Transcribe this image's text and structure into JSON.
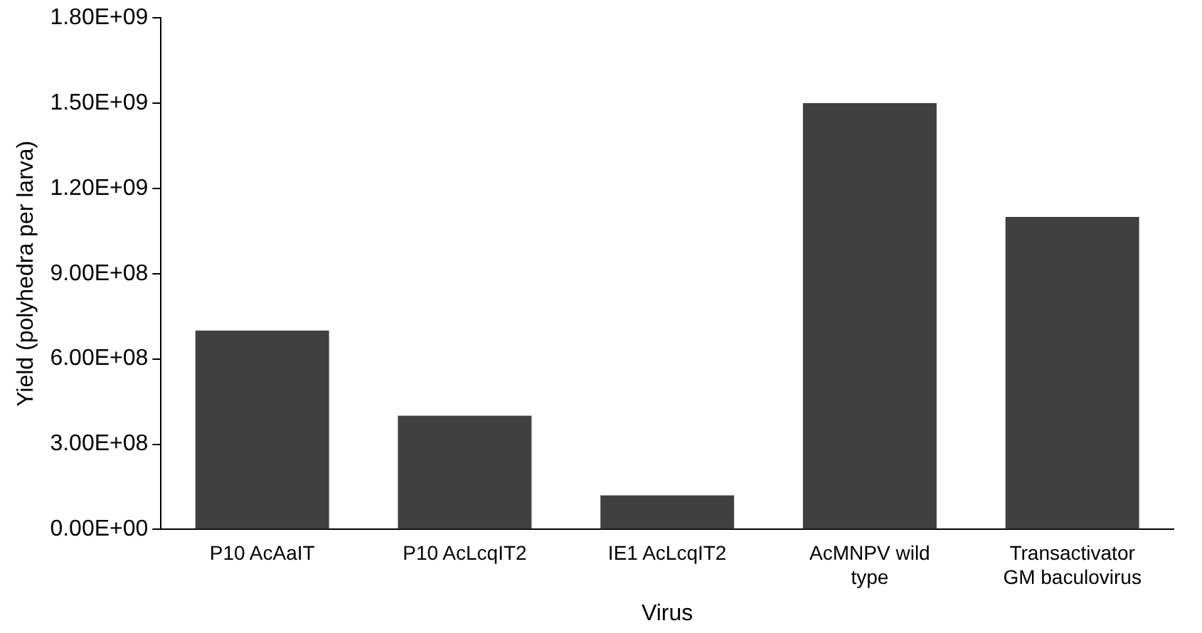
{
  "chart_data": {
    "type": "bar",
    "xlabel": "Virus",
    "ylabel": "Yield (polyhedra per larva)",
    "categories": [
      "P10 AcAaIT",
      "P10 AcLcqIT2",
      "IE1 AcLcqIT2",
      "AcMNPV wild\ntype",
      "Transactivator\nGM baculovirus"
    ],
    "values": [
      700000000,
      400000000,
      120000000,
      1500000000,
      1100000000
    ],
    "color": "#404040",
    "ylim": [
      0,
      1800000000
    ],
    "yticks": [
      {
        "value": 0,
        "label": "0.00E+00"
      },
      {
        "value": 300000000,
        "label": "3.00E+08"
      },
      {
        "value": 600000000,
        "label": "6.00E+08"
      },
      {
        "value": 900000000,
        "label": "9.00E+08"
      },
      {
        "value": 1200000000,
        "label": "1.20E+09"
      },
      {
        "value": 1500000000,
        "label": "1.50E+09"
      },
      {
        "value": 1800000000,
        "label": "1.80E+09"
      }
    ],
    "grid": false,
    "legend": false
  }
}
